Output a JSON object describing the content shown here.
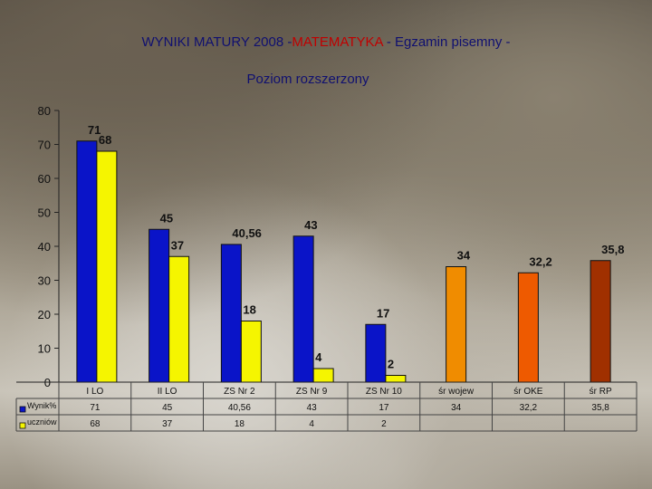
{
  "title": {
    "prefix": "WYNIKI MATURY 2008 -",
    "highlight": "MATEMATYKA",
    "suffix": " - Egzamin pisemny -"
  },
  "subtitle": "Poziom rozszerzony",
  "colors": {
    "wynik": "#0a14c8",
    "uczniow": "#f5f500",
    "sr_wojew": "#f08c00",
    "sr_oke": "#ee5a00",
    "sr_rp": "#a03000"
  },
  "chart_data": {
    "type": "bar",
    "ylim": [
      0,
      80
    ],
    "yticks": [
      "0",
      "10",
      "20",
      "30",
      "40",
      "50",
      "60",
      "70",
      "80"
    ],
    "categories": [
      "I LO",
      "II LO",
      "ZS Nr 2",
      "ZS Nr 9",
      "ZS Nr 10",
      "śr wojew",
      "śr OKE",
      "śr RP"
    ],
    "series": [
      {
        "name": "Wynik%",
        "values": [
          71,
          45,
          40.56,
          43,
          17,
          34,
          32.2,
          35.8
        ],
        "labels": [
          "71",
          "45",
          "40,56",
          "43",
          "17",
          "34",
          "32,2",
          "35,8"
        ]
      },
      {
        "name": "uczniów",
        "values": [
          68,
          37,
          18,
          4,
          2,
          null,
          null,
          null
        ],
        "labels": [
          "68",
          "37",
          "18",
          "4",
          "2",
          "",
          "",
          ""
        ]
      }
    ],
    "bar_color_keys": [
      "wynik",
      "wynik",
      "wynik",
      "wynik",
      "wynik",
      "sr_wojew",
      "sr_oke",
      "sr_rp"
    ],
    "legend": "data-table-bottom"
  }
}
